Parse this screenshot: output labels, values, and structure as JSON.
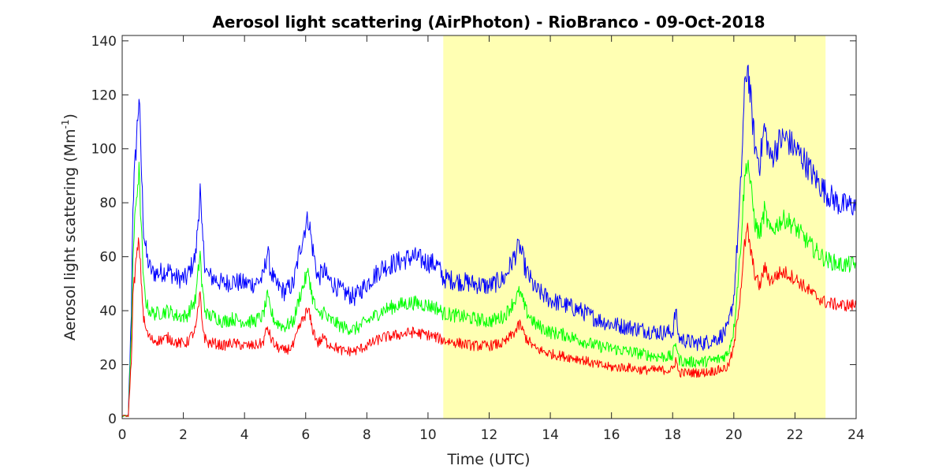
{
  "chart_data": {
    "type": "line",
    "title": "Aerosol light scattering (AirPhoton) - RioBranco - 09-Oct-2018",
    "xlabel": "Time (UTC)",
    "ylabel_main": "Aerosol light scattering (Mm",
    "ylabel_sup": "-1",
    "ylabel_close": ")",
    "xlim": [
      0,
      24
    ],
    "ylim": [
      0,
      142
    ],
    "xticks": [
      0,
      2,
      4,
      6,
      8,
      10,
      12,
      14,
      16,
      18,
      20,
      22,
      24
    ],
    "xtick_labels": [
      "0",
      "2",
      "4",
      "6",
      "8",
      "10",
      "12",
      "14",
      "16",
      "18",
      "20",
      "22",
      "24"
    ],
    "yticks": [
      0,
      20,
      40,
      60,
      80,
      100,
      120,
      140
    ],
    "ytick_labels": [
      "0",
      "20",
      "40",
      "60",
      "80",
      "100",
      "120",
      "140"
    ],
    "shaded_region": {
      "x_start": 10.5,
      "x_end": 23.0,
      "color": "#ffffb3"
    },
    "grid": false,
    "series": [
      {
        "color": "#0000ff",
        "x": [
          0,
          0.05,
          0.1,
          0.2,
          0.3,
          0.35,
          0.45,
          0.55,
          0.62,
          0.7,
          0.8,
          0.9,
          1.0,
          1.2,
          1.5,
          1.8,
          2.1,
          2.4,
          2.55,
          2.6,
          2.7,
          2.8,
          3.0,
          3.3,
          3.6,
          4.0,
          4.3,
          4.6,
          4.75,
          4.85,
          5.0,
          5.3,
          5.6,
          5.8,
          6.0,
          6.1,
          6.2,
          6.4,
          6.6,
          6.7,
          6.9,
          7.2,
          7.6,
          8.0,
          8.5,
          9.0,
          9.5,
          10.0,
          10.3,
          10.5,
          11.0,
          11.5,
          12.0,
          12.5,
          12.9,
          13.0,
          13.2,
          13.5,
          14.0,
          14.5,
          15.0,
          15.5,
          16.0,
          16.5,
          17.0,
          17.5,
          18.0,
          18.1,
          18.2,
          18.4,
          18.7,
          19.0,
          19.5,
          19.8,
          20.0,
          20.2,
          20.35,
          20.45,
          20.55,
          20.7,
          20.85,
          21.0,
          21.2,
          21.5,
          21.7,
          22.0,
          22.3,
          22.6,
          23.0,
          23.5,
          24.0
        ],
        "y": [
          1,
          1,
          1,
          1,
          40,
          80,
          100,
          120,
          95,
          70,
          60,
          56,
          54,
          54,
          55,
          52,
          52,
          60,
          85,
          70,
          58,
          53,
          52,
          50,
          51,
          50,
          50,
          52,
          62,
          55,
          50,
          47,
          50,
          62,
          72,
          74,
          65,
          52,
          55,
          52,
          50,
          47,
          45,
          50,
          56,
          58,
          60,
          58,
          57,
          52,
          51,
          50,
          49,
          52,
          62,
          64,
          55,
          48,
          44,
          42,
          40,
          37,
          35,
          34,
          33,
          32,
          32,
          40,
          30,
          29,
          28,
          28,
          30,
          33,
          45,
          80,
          120,
          132,
          118,
          100,
          95,
          108,
          96,
          103,
          104,
          100,
          96,
          90,
          84,
          79,
          79
        ]
      },
      {
        "color": "#00ff00",
        "x": [
          0,
          0.05,
          0.1,
          0.2,
          0.3,
          0.35,
          0.45,
          0.55,
          0.62,
          0.7,
          0.8,
          0.9,
          1.0,
          1.2,
          1.5,
          1.8,
          2.1,
          2.4,
          2.55,
          2.6,
          2.7,
          2.8,
          3.0,
          3.3,
          3.6,
          4.0,
          4.3,
          4.6,
          4.75,
          4.85,
          5.0,
          5.3,
          5.6,
          5.8,
          6.0,
          6.1,
          6.2,
          6.4,
          6.6,
          6.7,
          6.9,
          7.2,
          7.6,
          8.0,
          8.5,
          9.0,
          9.5,
          10.0,
          10.3,
          10.5,
          11.0,
          11.5,
          12.0,
          12.5,
          12.9,
          13.0,
          13.2,
          13.5,
          14.0,
          14.5,
          15.0,
          15.5,
          16.0,
          16.5,
          17.0,
          17.5,
          18.0,
          18.1,
          18.2,
          18.4,
          18.7,
          19.0,
          19.5,
          19.8,
          20.0,
          20.2,
          20.35,
          20.45,
          20.55,
          20.7,
          20.85,
          21.0,
          21.2,
          21.5,
          21.7,
          22.0,
          22.3,
          22.6,
          23.0,
          23.5,
          24.0
        ],
        "y": [
          1,
          1,
          1,
          1,
          30,
          60,
          80,
          92,
          72,
          50,
          42,
          40,
          39,
          39,
          40,
          38,
          38,
          44,
          62,
          50,
          41,
          38,
          38,
          36,
          37,
          36,
          36,
          38,
          45,
          40,
          36,
          34,
          36,
          45,
          52,
          54,
          46,
          38,
          40,
          37,
          36,
          34,
          33,
          36,
          40,
          42,
          43,
          42,
          41,
          39,
          38,
          37,
          36,
          38,
          45,
          47,
          40,
          35,
          32,
          31,
          29,
          27,
          26,
          25,
          24,
          23,
          23,
          29,
          22,
          21,
          21,
          21,
          22,
          24,
          33,
          60,
          88,
          97,
          86,
          72,
          68,
          77,
          69,
          73,
          74,
          71,
          67,
          63,
          59,
          57,
          57
        ]
      },
      {
        "color": "#ff0000",
        "x": [
          0,
          0.05,
          0.1,
          0.2,
          0.3,
          0.35,
          0.45,
          0.55,
          0.62,
          0.7,
          0.8,
          0.9,
          1.0,
          1.2,
          1.5,
          1.8,
          2.1,
          2.4,
          2.55,
          2.6,
          2.7,
          2.8,
          3.0,
          3.3,
          3.6,
          4.0,
          4.3,
          4.6,
          4.75,
          4.85,
          5.0,
          5.3,
          5.6,
          5.8,
          6.0,
          6.1,
          6.2,
          6.4,
          6.6,
          6.7,
          6.9,
          7.2,
          7.6,
          8.0,
          8.5,
          9.0,
          9.5,
          10.0,
          10.3,
          10.5,
          11.0,
          11.5,
          12.0,
          12.5,
          12.9,
          13.0,
          13.2,
          13.5,
          14.0,
          14.5,
          15.0,
          15.5,
          16.0,
          16.5,
          17.0,
          17.5,
          18.0,
          18.1,
          18.2,
          18.4,
          18.7,
          19.0,
          19.5,
          19.8,
          20.0,
          20.2,
          20.35,
          20.45,
          20.55,
          20.7,
          20.85,
          21.0,
          21.2,
          21.5,
          21.7,
          22.0,
          22.3,
          22.6,
          23.0,
          23.5,
          24.0
        ],
        "y": [
          1,
          1,
          1,
          1,
          22,
          45,
          58,
          66,
          52,
          37,
          32,
          30,
          29,
          29,
          30,
          28,
          28,
          33,
          46,
          37,
          30,
          28,
          28,
          27,
          28,
          27,
          27,
          28,
          34,
          30,
          27,
          25,
          27,
          34,
          39,
          40,
          34,
          28,
          30,
          28,
          27,
          25,
          25,
          27,
          30,
          31,
          32,
          31,
          30,
          29,
          28,
          27,
          27,
          28,
          33,
          35,
          30,
          26,
          24,
          23,
          22,
          20,
          19,
          19,
          18,
          18,
          18,
          22,
          17,
          17,
          17,
          17,
          18,
          19,
          26,
          45,
          64,
          70,
          62,
          53,
          49,
          56,
          51,
          54,
          54,
          52,
          49,
          46,
          43,
          42,
          42
        ]
      }
    ]
  }
}
